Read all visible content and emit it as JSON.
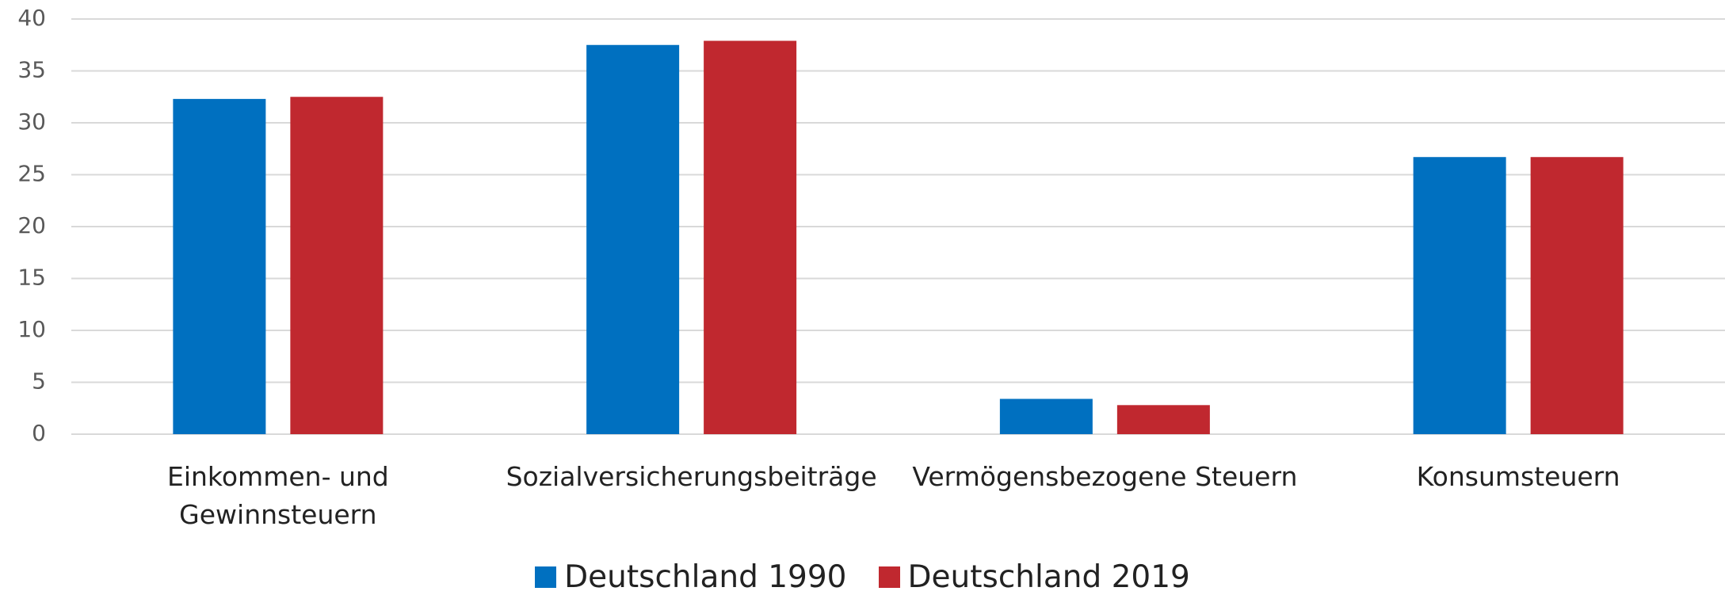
{
  "chart_data": {
    "type": "bar",
    "categories": [
      "Einkommen- und Gewinnsteuern",
      "Sozialversicherungsbeiträge",
      "Vermögensbezogene Steuern",
      "Konsumsteuern"
    ],
    "series": [
      {
        "name": "Deutschland 1990",
        "color": "#0070c0",
        "values": [
          32.3,
          37.5,
          3.4,
          26.7
        ]
      },
      {
        "name": "Deutschland 2019",
        "color": "#c0282f",
        "values": [
          32.5,
          37.9,
          2.8,
          26.7
        ]
      }
    ],
    "ylim": [
      0,
      40
    ],
    "yticks": [
      0,
      5,
      10,
      15,
      20,
      25,
      30,
      35,
      40
    ],
    "grid": true,
    "legend": "bottom"
  }
}
